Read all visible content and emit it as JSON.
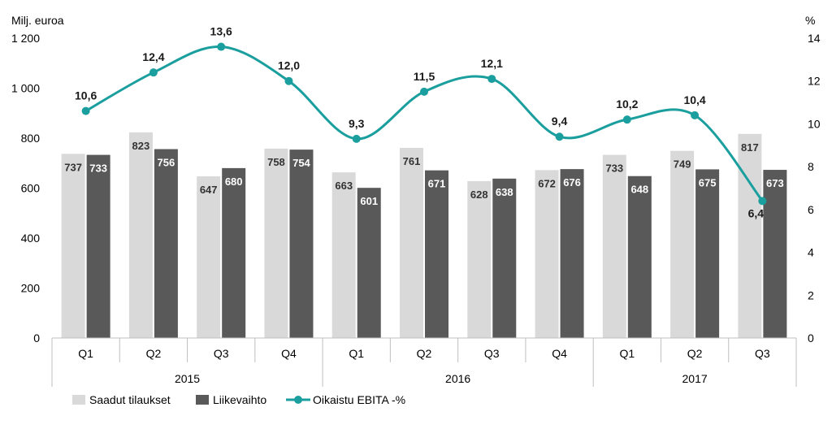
{
  "chart_data": {
    "type": "bar",
    "left_axis_unit": "Milj. euroa",
    "right_axis_unit": "%",
    "left_axis": {
      "min": 0,
      "max": 1200,
      "step": 200,
      "ticks": [
        "0",
        "200",
        "400",
        "600",
        "800",
        "1 000",
        "1 200"
      ]
    },
    "right_axis": {
      "min": 0,
      "max": 14,
      "step": 2,
      "ticks": [
        "0",
        "2",
        "4",
        "6",
        "8",
        "10",
        "12",
        "14"
      ]
    },
    "categories": [
      "Q1",
      "Q2",
      "Q3",
      "Q4",
      "Q1",
      "Q2",
      "Q3",
      "Q4",
      "Q1",
      "Q2",
      "Q3"
    ],
    "groups": [
      {
        "label": "2015",
        "count": 4
      },
      {
        "label": "2016",
        "count": 4
      },
      {
        "label": "2017",
        "count": 3
      }
    ],
    "series": [
      {
        "name": "Saadut tilaukset",
        "type": "bar",
        "axis": "left",
        "color": "#d9d9d9",
        "values": [
          737,
          823,
          647,
          758,
          663,
          761,
          628,
          672,
          733,
          749,
          817
        ],
        "labels": [
          "737",
          "823",
          "647",
          "758",
          "663",
          "761",
          "628",
          "672",
          "733",
          "749",
          "817"
        ]
      },
      {
        "name": "Liikevaihto",
        "type": "bar",
        "axis": "right_of_pair",
        "color": "#595959",
        "values": [
          733,
          756,
          680,
          754,
          601,
          671,
          638,
          676,
          648,
          675,
          673
        ],
        "labels": [
          "733",
          "756",
          "680",
          "754",
          "601",
          "671",
          "638",
          "676",
          "648",
          "675",
          "673"
        ]
      },
      {
        "name": "Oikaistu EBITA -%",
        "type": "line",
        "axis": "right",
        "color": "#1a9e9e",
        "values": [
          10.6,
          12.4,
          13.6,
          12.0,
          9.3,
          11.5,
          12.1,
          9.4,
          10.2,
          10.4,
          6.4
        ],
        "labels": [
          "10,6",
          "12,4",
          "13,6",
          "12,0",
          "9,3",
          "11,5",
          "12,1",
          "9,4",
          "10,2",
          "10,4",
          "6,4"
        ]
      }
    ],
    "grid": false,
    "legend_position": "bottom-left"
  }
}
